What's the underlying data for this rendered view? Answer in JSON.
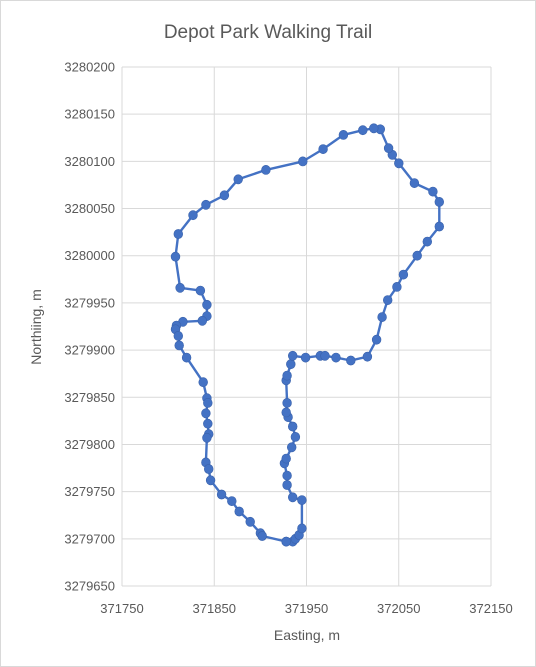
{
  "chart_data": {
    "type": "scatter",
    "title": "Depot Park Walking Trail",
    "xlabel": "Easting, m",
    "ylabel": "Northiing, m",
    "xlim": [
      371750,
      372150
    ],
    "ylim": [
      3279650,
      3280200
    ],
    "xticks": [
      371750,
      371850,
      371950,
      372050,
      372150
    ],
    "yticks": [
      3279650,
      3279700,
      3279750,
      3279800,
      3279850,
      3279900,
      3279950,
      3280000,
      3280050,
      3280100,
      3280150,
      3280200
    ],
    "grid": true,
    "legend": "none",
    "color": "#4472c4",
    "series": [
      {
        "x": [
          371928,
          371935,
          371938,
          371942,
          371945,
          371945,
          371935,
          371929,
          371929,
          371926,
          371928,
          371934,
          371938,
          371935,
          371930,
          371928,
          371929,
          371928,
          371929,
          371933,
          371935,
          371949,
          371965,
          371970,
          371982,
          371998,
          372016,
          372026,
          372032,
          372038,
          372048,
          372055,
          372070,
          372081,
          372094,
          372094,
          372087,
          372067,
          372050,
          372043,
          372039,
          372030,
          372023,
          372011,
          371990,
          371968,
          371946,
          371906,
          371876,
          371861,
          371841,
          371827,
          371811,
          371808,
          371813,
          371835,
          371842,
          371842,
          371837,
          371816,
          371809,
          371808,
          371811,
          371812,
          371820,
          371838,
          371842,
          371843,
          371841,
          371843,
          371844,
          371842,
          371841,
          371844,
          371846,
          371858,
          371869,
          371877,
          371889,
          371900,
          371902,
          371928
        ],
        "y": [
          3279697,
          3279697,
          3279700,
          3279704,
          3279711,
          3279741,
          3279744,
          3279757,
          3279767,
          3279780,
          3279785,
          3279797,
          3279808,
          3279819,
          3279829,
          3279834,
          3279844,
          3279868,
          3279873,
          3279885,
          3279894,
          3279892,
          3279894,
          3279894,
          3279892,
          3279889,
          3279893,
          3279911,
          3279935,
          3279953,
          3279967,
          3279980,
          3280000,
          3280015,
          3280031,
          3280057,
          3280068,
          3280077,
          3280098,
          3280107,
          3280114,
          3280134,
          3280135,
          3280133,
          3280128,
          3280113,
          3280100,
          3280091,
          3280081,
          3280064,
          3280054,
          3280043,
          3280023,
          3279999,
          3279966,
          3279963,
          3279948,
          3279936,
          3279931,
          3279930,
          3279926,
          3279922,
          3279915,
          3279905,
          3279892,
          3279866,
          3279849,
          3279844,
          3279833,
          3279822,
          3279811,
          3279807,
          3279781,
          3279774,
          3279762,
          3279747,
          3279740,
          3279729,
          3279718,
          3279706,
          3279703,
          3279697
        ]
      }
    ]
  }
}
